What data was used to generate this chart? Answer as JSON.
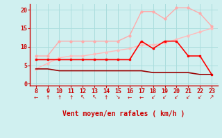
{
  "xlabel": "Vent moyen/en rafales ( km/h )",
  "x": [
    8,
    9,
    10,
    11,
    12,
    13,
    14,
    15,
    16,
    17,
    18,
    19,
    20,
    21,
    22,
    23
  ],
  "line1_y": [
    7.5,
    7.5,
    11.5,
    11.5,
    11.5,
    11.5,
    11.5,
    11.5,
    13.0,
    19.5,
    19.5,
    17.5,
    20.5,
    20.5,
    19.0,
    15.5
  ],
  "line1_color": "#ffaaaa",
  "line2_y": [
    6.5,
    6.5,
    6.5,
    6.5,
    6.5,
    6.5,
    6.5,
    6.5,
    6.5,
    11.5,
    9.5,
    11.5,
    11.5,
    7.5,
    7.5,
    2.5
  ],
  "line2_color": "#ff0000",
  "line3_y": [
    4.0,
    5.5,
    7.0,
    7.5,
    7.5,
    8.0,
    8.5,
    9.0,
    9.5,
    10.5,
    10.5,
    11.0,
    12.0,
    13.0,
    14.0,
    15.0
  ],
  "line3_color": "#ffbbbb",
  "line4_y": [
    4.0,
    4.0,
    3.5,
    3.5,
    3.5,
    3.5,
    3.5,
    3.5,
    3.5,
    3.5,
    3.0,
    3.0,
    3.0,
    3.0,
    2.5,
    2.5
  ],
  "line4_color": "#990000",
  "bg_color": "#d0f0f0",
  "grid_color": "#aadddd",
  "axis_color": "#cc0000",
  "text_color": "#cc0000",
  "ylim": [
    -0.5,
    21.5
  ],
  "xlim": [
    7.5,
    23.5
  ],
  "yticks": [
    0,
    5,
    10,
    15,
    20
  ],
  "xticks": [
    8,
    9,
    10,
    11,
    12,
    13,
    14,
    15,
    16,
    17,
    18,
    19,
    20,
    21,
    22,
    23
  ],
  "wind_arrows": [
    "←",
    "↑",
    "↑",
    "↑",
    "↖",
    "↖",
    "↑",
    "↘",
    "←",
    "←",
    "↙",
    "↙",
    "↙",
    "↙",
    "↙",
    "↗"
  ]
}
